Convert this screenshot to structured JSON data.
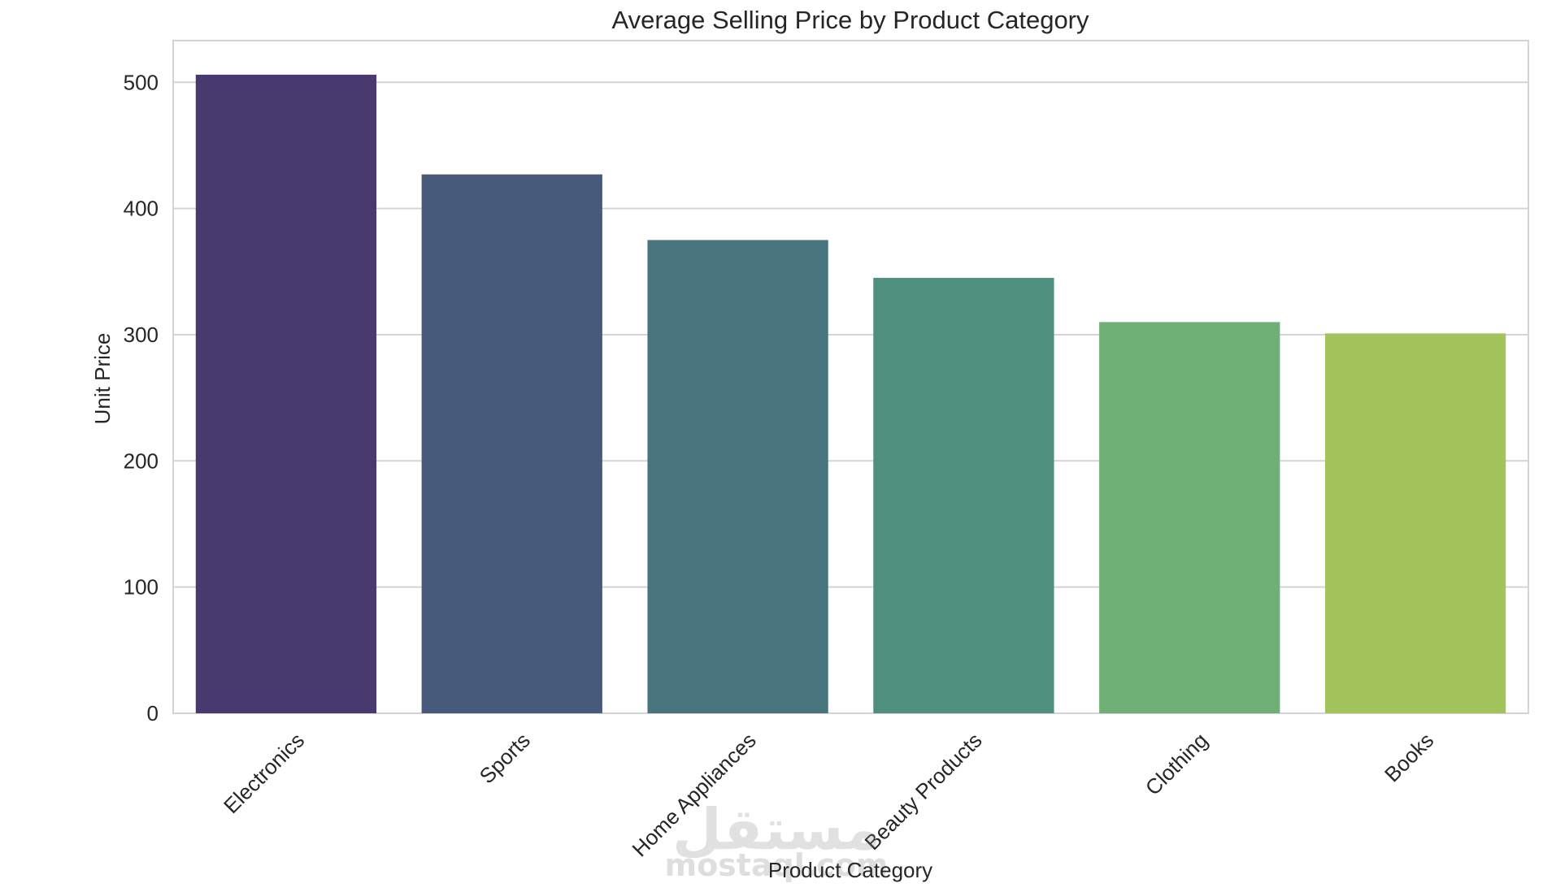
{
  "chart_data": {
    "type": "bar",
    "title": "Average Selling Price by Product Category",
    "xlabel": "Product Category",
    "ylabel": "Unit Price",
    "categories": [
      "Electronics",
      "Sports",
      "Home Appliances",
      "Beauty Products",
      "Clothing",
      "Books"
    ],
    "values": [
      506,
      427,
      375,
      345,
      310,
      301
    ],
    "colors": [
      "#483a6e",
      "#475a7c",
      "#47747d",
      "#4f8f7d",
      "#6fb077",
      "#a2c45b"
    ],
    "yticks": [
      0,
      100,
      200,
      300,
      400,
      500
    ],
    "ylim": [
      0,
      533
    ],
    "grid": true,
    "legend": "none"
  },
  "watermark": {
    "arabic": "مستقل",
    "latin": "mostaql.com"
  }
}
